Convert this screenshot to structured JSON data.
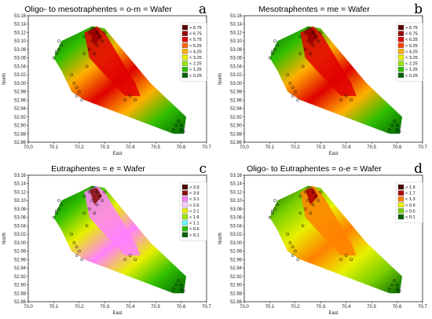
{
  "chart_data": [
    {
      "type": "heatmap",
      "letter": "a",
      "title": "Oligo- to mesotraphentes = o-m = Wafer",
      "xlabel": "East",
      "ylabel": "North",
      "xlim": [
        70.0,
        70.7
      ],
      "ylim": [
        52.86,
        53.16
      ],
      "x_ticks": [
        "70.0",
        "70.1",
        "70.2",
        "70.3",
        "70.4",
        "70.5",
        "70.6",
        "70.7"
      ],
      "y_ticks": [
        "53.16",
        "53.14",
        "53.12",
        "53.10",
        "53.08",
        "53.06",
        "53.04",
        "53.02",
        "53.00",
        "52.98",
        "52.96",
        "52.94",
        "52.92",
        "52.90",
        "52.88",
        "52.86"
      ],
      "legend_position": "top-right",
      "legend": [
        {
          "label": "> 6.75",
          "color": "#5a0000"
        },
        {
          "label": "< 6.75",
          "color": "#9a0000"
        },
        {
          "label": "< 5.75",
          "color": "#e00000"
        },
        {
          "label": "< 5.25",
          "color": "#ff6600"
        },
        {
          "label": "< 4.25",
          "color": "#ffb000"
        },
        {
          "label": "< 3.25",
          "color": "#e9f000"
        },
        {
          "label": "< 2.25",
          "color": "#9ae600"
        },
        {
          "label": "< 1.25",
          "color": "#2fbf00"
        },
        {
          "label": "< 0.25",
          "color": "#006400"
        }
      ]
    },
    {
      "type": "heatmap",
      "letter": "b",
      "title": "Mesotraphentes = me = Wafer",
      "xlabel": "East",
      "ylabel": "North",
      "xlim": [
        70.0,
        70.7
      ],
      "ylim": [
        52.86,
        53.16
      ],
      "x_ticks": [
        "70.0",
        "70.1",
        "70.2",
        "70.3",
        "70.4",
        "70.5",
        "70.6",
        "70.7"
      ],
      "y_ticks": [
        "53.16",
        "53.14",
        "53.12",
        "53.10",
        "53.08",
        "53.06",
        "53.04",
        "53.02",
        "53.00",
        "52.98",
        "52.96",
        "52.94",
        "52.92",
        "52.90",
        "52.88",
        "52.86"
      ],
      "legend_position": "top-right",
      "legend": [
        {
          "label": "> 6.75",
          "color": "#5a0000"
        },
        {
          "label": "< 6.75",
          "color": "#9a0000"
        },
        {
          "label": "< 6.25",
          "color": "#e00000"
        },
        {
          "label": "< 5.25",
          "color": "#ff4400"
        },
        {
          "label": "< 4.25",
          "color": "#ffb000"
        },
        {
          "label": "< 3.25",
          "color": "#e9f000"
        },
        {
          "label": "< 2.25",
          "color": "#9ae600"
        },
        {
          "label": "< 1.25",
          "color": "#2fbf00"
        },
        {
          "label": "< 0.25",
          "color": "#006400"
        }
      ]
    },
    {
      "type": "heatmap",
      "letter": "c",
      "title": "Eutraphentes = e = Wafer",
      "xlabel": "East",
      "ylabel": "North",
      "xlim": [
        70.0,
        70.7
      ],
      "ylim": [
        52.86,
        53.16
      ],
      "x_ticks": [
        "70.0",
        "70.1",
        "70.2",
        "70.3",
        "70.4",
        "70.5",
        "70.6",
        "70.7"
      ],
      "y_ticks": [
        "53.16",
        "53.14",
        "53.12",
        "53.10",
        "53.08",
        "53.06",
        "53.04",
        "53.02",
        "53.00",
        "52.98",
        "52.96",
        "52.94",
        "52.92",
        "52.90",
        "52.88",
        "52.86"
      ],
      "legend_position": "top-right",
      "legend": [
        {
          "label": "> 3.9",
          "color": "#4a0000"
        },
        {
          "label": "< 3.6",
          "color": "#8a1010"
        },
        {
          "label": "< 3.1",
          "color": "#ff80ff"
        },
        {
          "label": "< 2.6",
          "color": "#ffd0ff"
        },
        {
          "label": "< 2.1",
          "color": "#e9f000"
        },
        {
          "label": "< 1.6",
          "color": "#9ae600"
        },
        {
          "label": "< 1.1",
          "color": "#66ffff"
        },
        {
          "label": "< 0.6",
          "color": "#2fbf00"
        },
        {
          "label": "< 0.1",
          "color": "#006400"
        }
      ]
    },
    {
      "type": "heatmap",
      "letter": "d",
      "title": "Oligo- to Eutraphentes = o-e = Wafer",
      "xlabel": "East",
      "ylabel": "North",
      "xlim": [
        70.0,
        70.7
      ],
      "ylim": [
        52.86,
        53.16
      ],
      "x_ticks": [
        "70.0",
        "70.1",
        "70.2",
        "70.3",
        "70.4",
        "70.5",
        "70.6",
        "70.7"
      ],
      "y_ticks": [
        "53.16",
        "53.14",
        "53.12",
        "53.10",
        "53.08",
        "53.06",
        "53.04",
        "53.02",
        "53.00",
        "52.98",
        "52.96",
        "52.94",
        "52.92",
        "52.90",
        "52.88",
        "52.86"
      ],
      "legend_position": "top-right",
      "legend": [
        {
          "label": "> 1.9",
          "color": "#4a0000"
        },
        {
          "label": "< 1.7",
          "color": "#b00000"
        },
        {
          "label": "< 1.3",
          "color": "#ff8000"
        },
        {
          "label": "< 0.9",
          "color": "#e9f000"
        },
        {
          "label": "< 0.5",
          "color": "#7ad000"
        },
        {
          "label": "< 0.1",
          "color": "#006400"
        }
      ]
    }
  ],
  "sampling_points": [
    [
      70.1,
      53.06
    ],
    [
      70.11,
      53.07
    ],
    [
      70.12,
      53.08
    ],
    [
      70.13,
      53.09
    ],
    [
      70.12,
      53.1
    ],
    [
      70.11,
      53.075
    ],
    [
      70.17,
      53.02
    ],
    [
      70.18,
      53.0
    ],
    [
      70.19,
      52.99
    ],
    [
      70.2,
      52.98
    ],
    [
      70.19,
      52.97
    ],
    [
      70.21,
      52.96
    ],
    [
      70.22,
      53.11
    ],
    [
      70.24,
      53.12
    ],
    [
      70.25,
      53.13
    ],
    [
      70.26,
      53.13
    ],
    [
      70.27,
      53.12
    ],
    [
      70.28,
      53.11
    ],
    [
      70.25,
      53.1
    ],
    [
      70.24,
      53.08
    ],
    [
      70.26,
      53.07
    ],
    [
      70.27,
      53.09
    ],
    [
      70.29,
      53.1
    ],
    [
      70.3,
      53.12
    ],
    [
      70.22,
      53.07
    ],
    [
      70.23,
      53.04
    ],
    [
      70.4,
      52.97
    ],
    [
      70.42,
      52.96
    ],
    [
      70.38,
      52.96
    ],
    [
      70.58,
      52.9
    ],
    [
      70.59,
      52.91
    ],
    [
      70.6,
      52.89
    ],
    [
      70.57,
      52.89
    ],
    [
      70.6,
      52.9
    ],
    [
      70.61,
      52.885
    ]
  ],
  "region_outline": [
    [
      70.1,
      53.06
    ],
    [
      70.13,
      53.1
    ],
    [
      70.2,
      53.12
    ],
    [
      70.25,
      53.135
    ],
    [
      70.3,
      53.13
    ],
    [
      70.48,
      53.0
    ],
    [
      70.62,
      52.92
    ],
    [
      70.61,
      52.88
    ],
    [
      70.57,
      52.88
    ],
    [
      70.22,
      52.96
    ],
    [
      70.17,
      52.98
    ],
    [
      70.13,
      53.03
    ]
  ]
}
